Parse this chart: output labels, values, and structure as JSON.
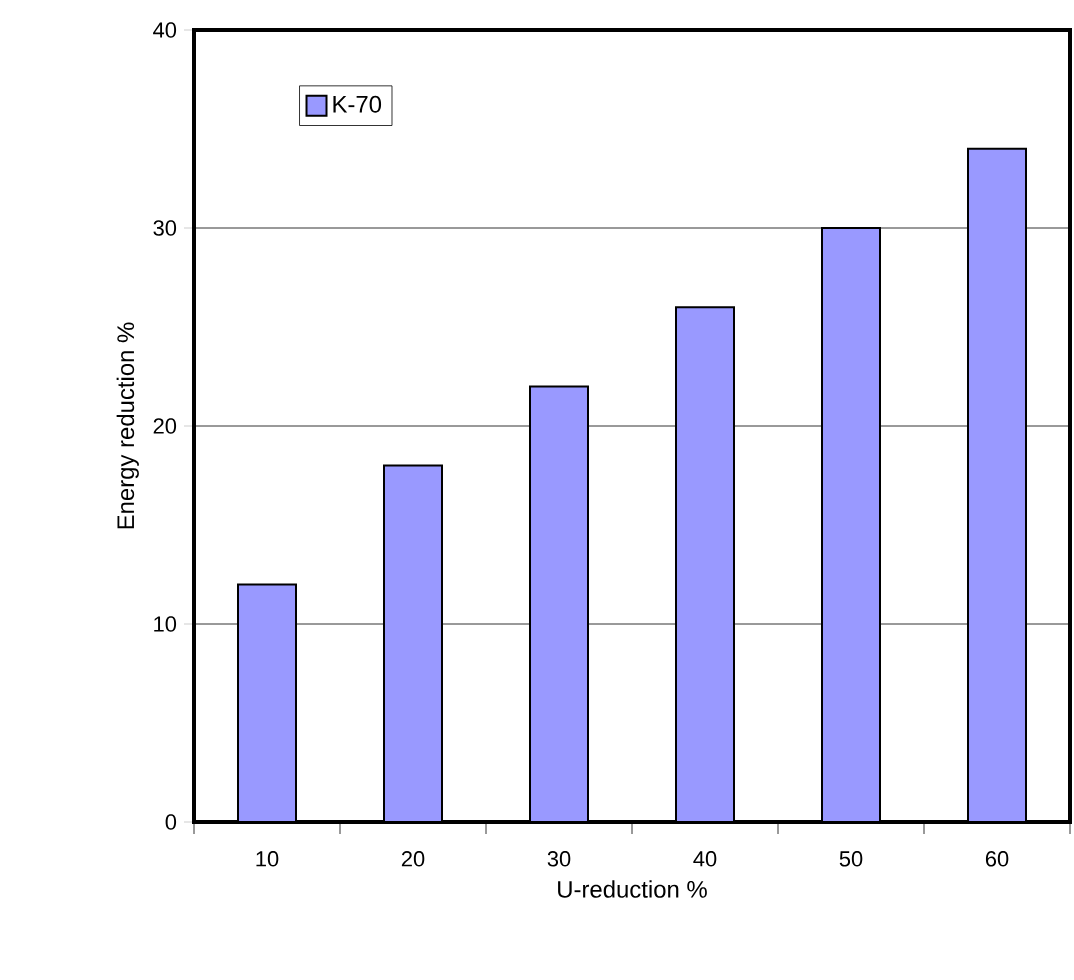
{
  "chart_data": {
    "type": "bar",
    "xlabel": "U-reduction %",
    "ylabel": "Energy reduction %",
    "categories": [
      "10",
      "20",
      "30",
      "40",
      "50",
      "60"
    ],
    "series": [
      {
        "name": "K-70",
        "color": "#9999ff",
        "values": [
          12,
          18,
          22,
          26,
          30,
          34
        ]
      }
    ],
    "ylim": [
      0,
      40
    ],
    "yticks": [
      0,
      10,
      20,
      30,
      40
    ],
    "grid": "y",
    "legend": "top left"
  }
}
